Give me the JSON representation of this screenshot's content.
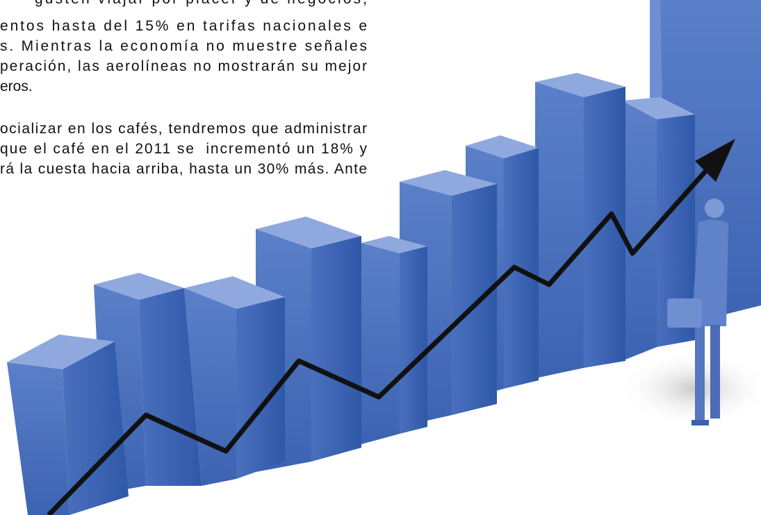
{
  "text": {
    "paragraphs": [
      {
        "lines": [
          "gusten viajar por placer y de negocios,",
          "entos hasta del 15% en tarifas nacionales e",
          "s. Mientras la economía no muestre señales",
          "peración, las aerolíneas no mostrarán su mejor",
          "eros."
        ]
      },
      {
        "lines": [
          "ocializar en los cafés, tendremos que administrar",
          "que el café en el 2011 se  incrementó un 18% y",
          "rá la cuesta hacia arriba, hasta un 30% más. Ante"
        ]
      }
    ]
  }
}
